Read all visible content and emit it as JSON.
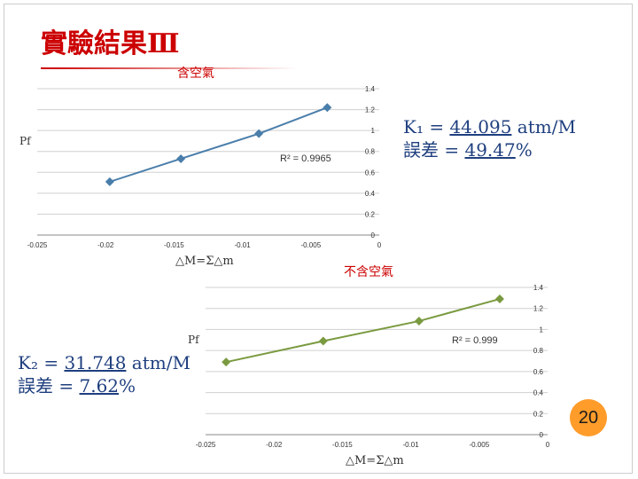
{
  "title": "實驗結果Ⅲ",
  "page_number": "20",
  "charts": [
    {
      "title": "含空氣",
      "ylabel": "Pf",
      "xlabel": "△M=Σ△m",
      "r_squared": "R² = 0.9965",
      "k_label": "K₁ = ",
      "k_value": "44.095",
      "k_unit": " atm/M",
      "err_label": "誤差 = ",
      "err_value": "49.47",
      "err_unit": "%"
    },
    {
      "title": "不含空氣",
      "ylabel": "Pf",
      "xlabel": "△M=Σ△m",
      "r_squared": "R² = 0.999",
      "k_label": "K₂ = ",
      "k_value": "31.748",
      "k_unit": " atm/M",
      "err_label": "誤差 = ",
      "err_value": "7.62",
      "err_unit": "%"
    }
  ],
  "chart_data": [
    {
      "type": "line",
      "title": "含空氣",
      "xlabel": "△M=Σ△m",
      "ylabel": "Pf",
      "x_ticks": [
        "-0.025",
        "-0.02",
        "-0.015",
        "-0.01",
        "-0.005",
        "0"
      ],
      "y_ticks": [
        "0",
        "0.2",
        "0.4",
        "0.6",
        "0.8",
        "1",
        "1.2",
        "1.4"
      ],
      "xlim": [
        -0.025,
        0
      ],
      "ylim": [
        0,
        1.4
      ],
      "grid": true,
      "color": "#4a7eaa",
      "points": [
        {
          "x": -0.0197,
          "y": 0.51
        },
        {
          "x": -0.0145,
          "y": 0.73
        },
        {
          "x": -0.0088,
          "y": 0.97
        },
        {
          "x": -0.0038,
          "y": 1.22
        }
      ],
      "annotation": "R² = 0.9965"
    },
    {
      "type": "line",
      "title": "不含空氣",
      "xlabel": "△M=Σ△m",
      "ylabel": "Pf",
      "x_ticks": [
        "-0.025",
        "-0.02",
        "-0.015",
        "-0.01",
        "-0.005",
        "0"
      ],
      "y_ticks": [
        "0",
        "0.2",
        "0.4",
        "0.6",
        "0.8",
        "1",
        "1.2",
        "1.4"
      ],
      "xlim": [
        -0.025,
        0
      ],
      "ylim": [
        0,
        1.4
      ],
      "grid": true,
      "color": "#7a9a40",
      "points": [
        {
          "x": -0.0235,
          "y": 0.69
        },
        {
          "x": -0.0164,
          "y": 0.89
        },
        {
          "x": -0.0094,
          "y": 1.08
        },
        {
          "x": -0.0035,
          "y": 1.29
        }
      ],
      "annotation": "R² = 0.999"
    }
  ]
}
